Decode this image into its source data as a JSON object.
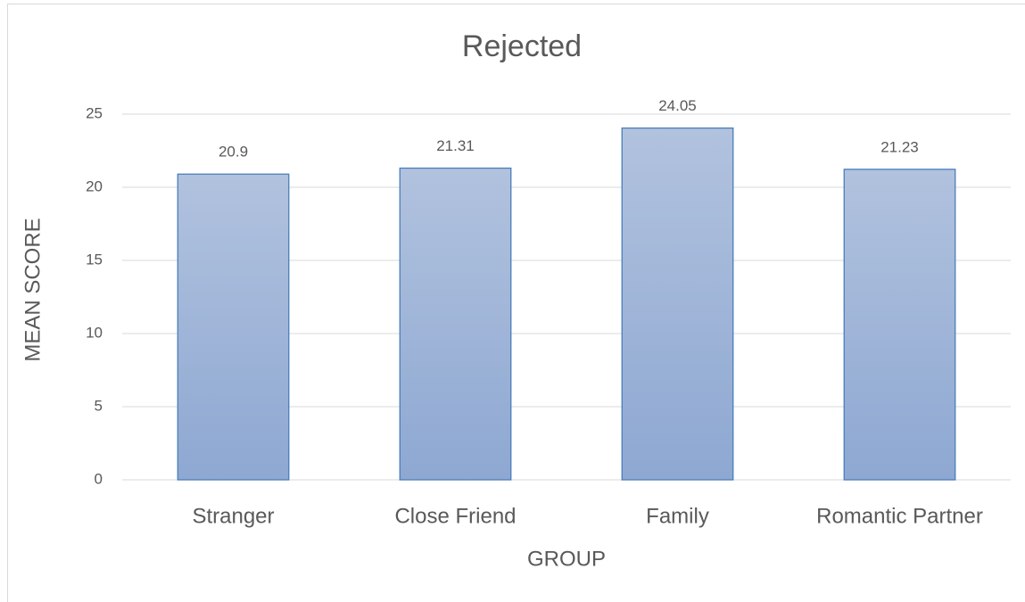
{
  "chart_data": {
    "type": "bar",
    "title": "Rejected",
    "x_label": "GROUP",
    "y_label": "MEAN SCORE",
    "categories": [
      "Stranger",
      "Close Friend",
      "Family",
      "Romantic Partner"
    ],
    "values": [
      20.9,
      21.31,
      24.05,
      21.23
    ],
    "color": "#8ea8d2",
    "gradient_top": "#b1c2de",
    "edge_color": "#4a7ebb",
    "ylim": [
      0,
      25
    ],
    "yticks": [
      0,
      5,
      10,
      15,
      20,
      25
    ],
    "grid": true,
    "data_labels": true
  }
}
